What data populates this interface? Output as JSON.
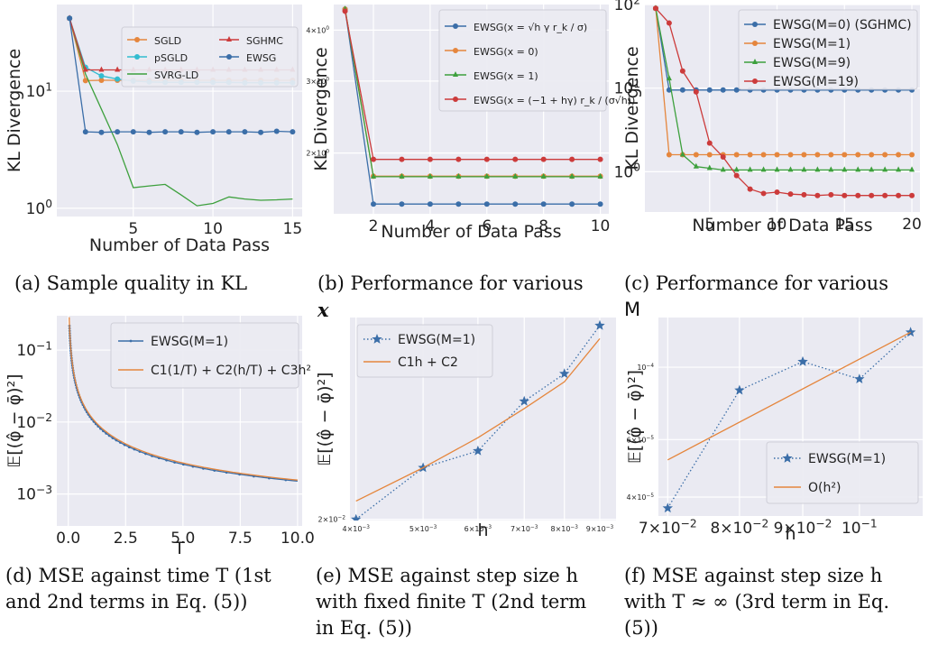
{
  "captions": [
    {
      "label": "(a)",
      "lines": [
        "Sample quality in KL"
      ]
    },
    {
      "label": "(b)",
      "lines": [
        "Performance for various",
        "x"
      ]
    },
    {
      "label": "(c)",
      "lines": [
        "Performance for various",
        "M"
      ]
    },
    {
      "label": "(d)",
      "lines": [
        "MSE against time T (1st",
        "and 2nd terms in Eq. (5))"
      ]
    },
    {
      "label": "(e)",
      "lines": [
        "MSE against step size h",
        "with fixed finite T (2nd term",
        "in Eq. (5))"
      ]
    },
    {
      "label": "(f)",
      "lines": [
        "MSE against step size h",
        "with T ≈ ∞ (3rd term in Eq.",
        "(5))"
      ]
    }
  ],
  "colors": {
    "blue": "#3b6ea8",
    "orange": "#e5863d",
    "green": "#3da03d",
    "red": "#cc3b3b",
    "cyan": "#33bcd0",
    "panel_bg": "#eaeaf2"
  },
  "chart_data": [
    {
      "type": "line",
      "id": "a",
      "xlabel": "Number of Data Pass",
      "ylabel": "KL Divergence",
      "xlim": [
        0.2,
        15.6
      ],
      "ylim": [
        0.85,
        55
      ],
      "yscale": "log",
      "xticks": [
        5,
        10,
        15
      ],
      "xtick_labels": [
        "5",
        "10",
        "15"
      ],
      "yticks": [
        1,
        10
      ],
      "ytick_labels": [
        "10^0",
        "10^1"
      ],
      "legend": "top-right",
      "legend_cols": 2,
      "grid": true,
      "x": [
        1,
        2,
        3,
        4,
        5,
        6,
        7,
        8,
        9,
        10,
        11,
        12,
        13,
        14,
        15
      ],
      "series": [
        {
          "name": "SGLD",
          "color": "orange",
          "marker": "circle",
          "values": [
            42,
            12.3,
            12.4,
            12.4,
            12.4,
            12.4,
            12.4,
            12.4,
            12.4,
            12.4,
            12.4,
            12.4,
            12.4,
            12.4,
            12.4
          ]
        },
        {
          "name": "pSGLD",
          "color": "cyan",
          "marker": "circle",
          "values": [
            42,
            16,
            13.5,
            12.7,
            12.2,
            12.0,
            11.9,
            11.9,
            11.9,
            11.9,
            11.9,
            11.8,
            11.8,
            11.8,
            11.8
          ]
        },
        {
          "name": "SVRG-LD",
          "color": "green",
          "marker": "none",
          "values": [
            42,
            14,
            7,
            3.5,
            1.5,
            1.55,
            1.6,
            1.3,
            1.05,
            1.1,
            1.25,
            1.2,
            1.17,
            1.18,
            1.2
          ]
        },
        {
          "name": "SGHMC",
          "color": "red",
          "marker": "triangle",
          "values": [
            42,
            15.2,
            15.2,
            15.2,
            15.2,
            15.2,
            15.2,
            15.2,
            15.2,
            15.2,
            15.2,
            15.2,
            15.2,
            15.2,
            15.2
          ]
        },
        {
          "name": "EWSG",
          "color": "blue",
          "marker": "circle",
          "values": [
            42,
            4.5,
            4.45,
            4.5,
            4.5,
            4.45,
            4.5,
            4.5,
            4.45,
            4.5,
            4.5,
            4.5,
            4.45,
            4.55,
            4.5
          ]
        }
      ]
    },
    {
      "type": "line",
      "id": "b",
      "xlabel": "Number of Data Pass",
      "ylabel": "KL Divergence",
      "xlim": [
        0.6,
        10.3
      ],
      "ylim": [
        1.42,
        4.62
      ],
      "yscale": "log",
      "xticks": [
        2,
        4,
        6,
        8,
        10
      ],
      "xtick_labels": [
        "2",
        "4",
        "6",
        "8",
        "10"
      ],
      "yticks": [
        2,
        3,
        4
      ],
      "ytick_labels": [
        "2×10^0",
        "3×10^0",
        "4×10^0"
      ],
      "legend": "top-right",
      "legend_cols": 1,
      "grid": true,
      "x": [
        1,
        2,
        3,
        4,
        5,
        6,
        7,
        8,
        9,
        10
      ],
      "series": [
        {
          "name": "EWSG(x = √h γ r_k / σ)",
          "color": "blue",
          "marker": "circle",
          "values": [
            4.5,
            1.5,
            1.5,
            1.5,
            1.5,
            1.5,
            1.5,
            1.5,
            1.5,
            1.5
          ]
        },
        {
          "name": "EWSG(x = 0)",
          "color": "orange",
          "marker": "circle",
          "values": [
            4.5,
            1.755,
            1.755,
            1.755,
            1.755,
            1.755,
            1.755,
            1.755,
            1.755,
            1.755
          ]
        },
        {
          "name": "EWSG(x = 1)",
          "color": "green",
          "marker": "triangle",
          "values": [
            4.5,
            1.75,
            1.75,
            1.75,
            1.75,
            1.75,
            1.75,
            1.75,
            1.75,
            1.75
          ]
        },
        {
          "name": "EWSG(x = (−1 + hγ) r_k / (σ√h))",
          "color": "red",
          "marker": "circle",
          "values": [
            4.45,
            1.93,
            1.93,
            1.93,
            1.93,
            1.93,
            1.93,
            1.93,
            1.93,
            1.93
          ]
        }
      ]
    },
    {
      "type": "line",
      "id": "c",
      "xlabel": "Number of Data Pass",
      "ylabel": "KL Divergence",
      "xlim": [
        0.2,
        20.6
      ],
      "ylim": [
        0.33,
        100
      ],
      "yscale": "log",
      "xticks": [
        5,
        10,
        15,
        20
      ],
      "xtick_labels": [
        "5",
        "10",
        "15",
        "20"
      ],
      "yticks": [
        1,
        10,
        100
      ],
      "ytick_labels": [
        "10^0",
        "10^1",
        "10^2"
      ],
      "legend": "top-right",
      "legend_cols": 1,
      "grid": true,
      "x": [
        1,
        2,
        3,
        4,
        5,
        6,
        7,
        8,
        9,
        10,
        11,
        12,
        13,
        14,
        15,
        16,
        17,
        18,
        19,
        20
      ],
      "series": [
        {
          "name": "EWSG(M=0) (SGHMC)",
          "color": "blue",
          "marker": "circle",
          "values": [
            90,
            9.5,
            9.5,
            9.5,
            9.5,
            9.5,
            9.5,
            9.5,
            9.5,
            9.5,
            9.5,
            9.5,
            9.5,
            9.5,
            9.5,
            9.5,
            9.5,
            9.5,
            9.5,
            9.5
          ]
        },
        {
          "name": "EWSG(M=1)",
          "color": "orange",
          "marker": "circle",
          "values": [
            90,
            1.6,
            1.6,
            1.6,
            1.6,
            1.6,
            1.6,
            1.6,
            1.6,
            1.6,
            1.6,
            1.6,
            1.6,
            1.6,
            1.6,
            1.6,
            1.6,
            1.6,
            1.6,
            1.6
          ]
        },
        {
          "name": "EWSG(M=9)",
          "color": "green",
          "marker": "triangle",
          "values": [
            90,
            13,
            1.6,
            1.15,
            1.1,
            1.05,
            1.05,
            1.05,
            1.05,
            1.05,
            1.05,
            1.05,
            1.05,
            1.05,
            1.05,
            1.05,
            1.05,
            1.05,
            1.05,
            1.05
          ]
        },
        {
          "name": "EWSG(M=19)",
          "color": "red",
          "marker": "circle",
          "values": [
            90,
            60,
            16,
            9,
            2.2,
            1.5,
            0.9,
            0.62,
            0.55,
            0.57,
            0.54,
            0.53,
            0.52,
            0.53,
            0.52,
            0.52,
            0.52,
            0.52,
            0.52,
            0.52
          ]
        }
      ]
    },
    {
      "type": "line",
      "id": "d",
      "xlabel": "T",
      "ylabel": "𝔼[(φ̂ − φ̄)²]",
      "xlim": [
        -0.5,
        10.2
      ],
      "ylim": [
        0.00036,
        0.3
      ],
      "yscale": "log",
      "xticks": [
        0,
        2.5,
        5,
        7.5,
        10
      ],
      "xtick_labels": [
        "0.0",
        "2.5",
        "5.0",
        "7.5",
        "10.0"
      ],
      "yticks": [
        0.001,
        0.01,
        0.1
      ],
      "ytick_labels": [
        "10^-3",
        "10^-2",
        "10^-1"
      ],
      "legend": "top-right",
      "legend_cols": 1,
      "grid": true,
      "series": [
        {
          "name": "EWSG(M=1)",
          "color": "blue",
          "marker": "dot",
          "formula": "0.0108/T + 0.00043 (T in 0.05..10)"
        },
        {
          "name": "C1(1/T) + C2(h/T) + C3h²",
          "color": "orange",
          "marker": "none",
          "formula": "0.0114/T + 0.00042 (T in 0.04..10)"
        }
      ]
    },
    {
      "type": "line",
      "id": "e",
      "xlabel": "h",
      "ylabel": "𝔼[(φ̂ − φ̄)²]",
      "xlim": [
        0.00392,
        0.0095
      ],
      "ylim": [
        0.0198,
        0.118
      ],
      "xscale": "log",
      "yscale": "log",
      "xticks": [
        0.004,
        0.005,
        0.006,
        0.007,
        0.008,
        0.009
      ],
      "xtick_labels": [
        "4×10^-3",
        "5×10^-3",
        "6×10^-3",
        "7×10^-3",
        "8×10^-3",
        "9×10^-3"
      ],
      "yticks": [
        0.02
      ],
      "ytick_labels": [
        "2×10^-2"
      ],
      "legend": "top-left",
      "legend_cols": 1,
      "grid": true,
      "series": [
        {
          "name": "EWSG(M=1)",
          "color": "blue",
          "marker": "star",
          "linestyle": "dotted",
          "x": [
            0.004,
            0.005,
            0.006,
            0.007,
            0.008,
            0.009
          ],
          "values": [
            0.02,
            0.0315,
            0.0365,
            0.0565,
            0.072,
            0.11
          ]
        },
        {
          "name": "C1h + C2",
          "color": "orange",
          "marker": "none",
          "x": [
            0.004,
            0.005,
            0.006,
            0.007,
            0.008,
            0.009
          ],
          "values": [
            0.0235,
            0.0315,
            0.041,
            0.053,
            0.067,
            0.098
          ]
        }
      ]
    },
    {
      "type": "line",
      "id": "f",
      "xlabel": "h",
      "ylabel": "𝔼[(φ̂ − φ̄)²]",
      "xlim": [
        0.0688,
        0.1125
      ],
      "ylim": [
        3.5e-05,
        0.000142
      ],
      "xscale": "log",
      "yscale": "log",
      "xticks": [
        0.07,
        0.08,
        0.09,
        0.1
      ],
      "xtick_labels": [
        "7×10^-2",
        "8×10^-2",
        "9×10^-2",
        "10^-1"
      ],
      "yticks": [
        4e-05,
        6e-05,
        0.0001
      ],
      "ytick_labels": [
        "4×10^-5",
        "6×10^-5",
        "10^-4"
      ],
      "legend": "bottom-right",
      "legend_cols": 1,
      "grid": true,
      "series": [
        {
          "name": "EWSG(M=1)",
          "color": "blue",
          "marker": "star",
          "linestyle": "dotted",
          "x": [
            0.07,
            0.08,
            0.09,
            0.1,
            0.11
          ],
          "values": [
            3.7e-05,
            8.5e-05,
            0.000104,
            9.2e-05,
            0.000128
          ]
        },
        {
          "name": "O(h²)",
          "color": "orange",
          "marker": "none",
          "x": [
            0.07,
            0.11
          ],
          "values": [
            5.2e-05,
            0.000128
          ]
        }
      ]
    }
  ]
}
